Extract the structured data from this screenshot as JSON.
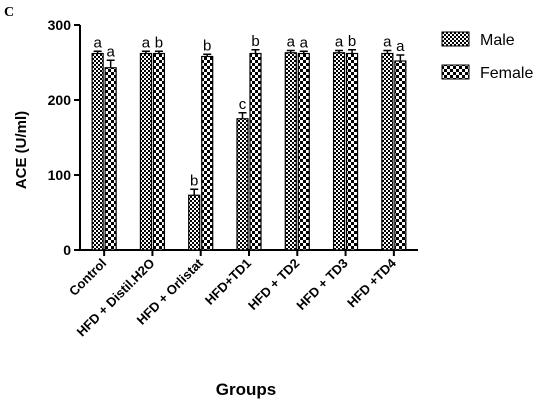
{
  "chart_data": {
    "type": "bar",
    "panel_label": "C",
    "xlabel": "Groups",
    "ylabel": "ACE (U/ml)",
    "ylim": [
      0,
      300
    ],
    "yticks": [
      0,
      100,
      200,
      300
    ],
    "grid": false,
    "legend_position": "top-right",
    "categories": [
      "Control",
      "HFD + Distil.H2O",
      "HFD + Orlistat",
      "HFD+TD1",
      "HFD + TD2",
      "HFD + TD3",
      "HFD +TD4"
    ],
    "series": [
      {
        "name": "Male",
        "pattern": "checker-fine",
        "values": [
          262,
          262,
          73,
          175,
          263,
          263,
          262
        ],
        "errors": [
          3,
          3,
          8,
          8,
          3,
          3,
          4
        ],
        "letters": [
          "a",
          "a",
          "b",
          "c",
          "a",
          "a",
          "a"
        ]
      },
      {
        "name": "Female",
        "pattern": "checker-coarse",
        "values": [
          243,
          262,
          258,
          262,
          262,
          262,
          252
        ],
        "errors": [
          10,
          3,
          3,
          5,
          3,
          5,
          8
        ],
        "letters": [
          "a",
          "b",
          "b",
          "b",
          "a",
          "b",
          "a"
        ]
      }
    ]
  }
}
